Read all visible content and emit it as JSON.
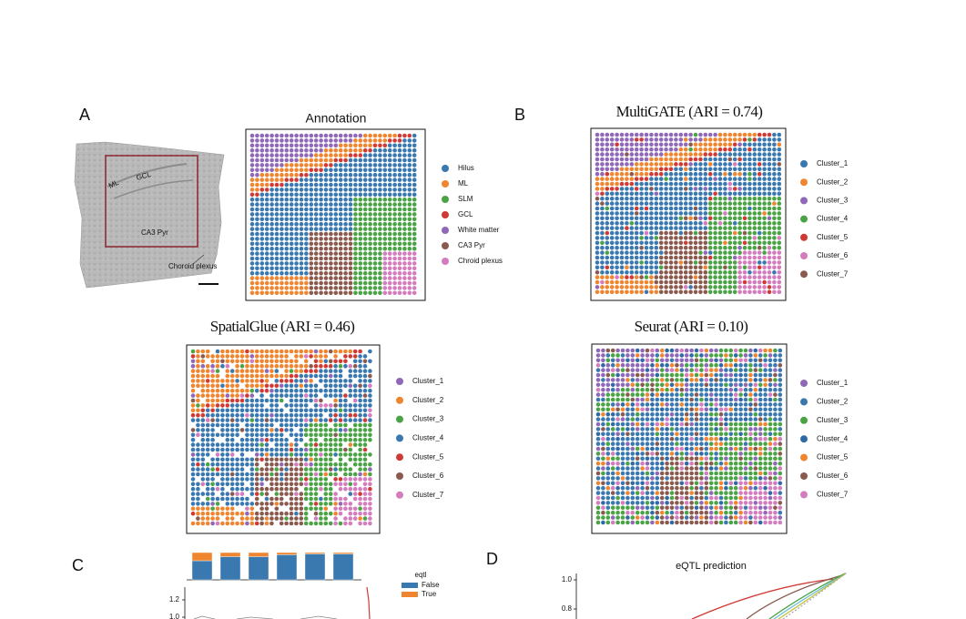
{
  "panel_a": {
    "label": "A",
    "histology": {
      "labels": [
        "ML",
        "GCL",
        "CA3 Pyr",
        "Choroid plexus"
      ]
    },
    "title": "Annotation",
    "legend": [
      {
        "name": "Hilus",
        "color": "#3a78b0"
      },
      {
        "name": "ML",
        "color": "#f08530"
      },
      {
        "name": "SLM",
        "color": "#4aa345"
      },
      {
        "name": "GCL",
        "color": "#d03a35"
      },
      {
        "name": "White matter",
        "color": "#9068b8"
      },
      {
        "name": "CA3 Pyr",
        "color": "#8b5a4e"
      },
      {
        "name": "Chroid plexus",
        "color": "#d47cbe"
      }
    ]
  },
  "panel_b": {
    "label": "B",
    "title": "MultiGATE (ARI = 0.74)",
    "legend": [
      {
        "name": "Cluster_1",
        "color": "#3a78b0"
      },
      {
        "name": "Cluster_2",
        "color": "#f08530"
      },
      {
        "name": "Cluster_3",
        "color": "#9068b8"
      },
      {
        "name": "Cluster_4",
        "color": "#4aa345"
      },
      {
        "name": "Cluster_5",
        "color": "#d03a35"
      },
      {
        "name": "Cluster_6",
        "color": "#d47cbe"
      },
      {
        "name": "Cluster_7",
        "color": "#8b5a4e"
      }
    ]
  },
  "spatialglue": {
    "title": "SpatialGlue (ARI = 0.46)",
    "legend": [
      {
        "name": "Cluster_1",
        "color": "#9068b8"
      },
      {
        "name": "Cluster_2",
        "color": "#f08530"
      },
      {
        "name": "Cluster_3",
        "color": "#4aa345"
      },
      {
        "name": "Cluster_4",
        "color": "#3a78b0"
      },
      {
        "name": "Cluster_5",
        "color": "#d03a35"
      },
      {
        "name": "Cluster_6",
        "color": "#8b5a4e"
      },
      {
        "name": "Cluster_7",
        "color": "#d47cbe"
      }
    ]
  },
  "seurat": {
    "title": "Seurat (ARI = 0.10)",
    "legend": [
      {
        "name": "Cluster_1",
        "color": "#9068b8"
      },
      {
        "name": "Cluster_2",
        "color": "#3a78b0"
      },
      {
        "name": "Cluster_3",
        "color": "#4aa345"
      },
      {
        "name": "Cluster_4",
        "color": "#2f6aa6"
      },
      {
        "name": "Cluster_5",
        "color": "#f08530"
      },
      {
        "name": "Cluster_6",
        "color": "#8b5a4e"
      },
      {
        "name": "Cluster_7",
        "color": "#d47cbe"
      }
    ]
  },
  "panel_c": {
    "label": "C",
    "legend_title": "eqtl",
    "series": [
      {
        "name": "False",
        "color": "#3a78b0",
        "values": [
          0.7,
          0.85,
          0.85,
          0.92,
          0.95,
          0.95
        ]
      },
      {
        "name": "True",
        "color": "#f08530",
        "values": [
          0.3,
          0.15,
          0.15,
          0.08,
          0.05,
          0.05
        ]
      }
    ],
    "yticks": [
      1.2,
      {
        "value": 1,
        "label": "1.0"
      }
    ]
  },
  "panel_d": {
    "label": "D",
    "title": "eQTL prediction",
    "yticks": [
      {
        "value": 1,
        "label": "1.0"
      },
      0.8
    ]
  }
}
